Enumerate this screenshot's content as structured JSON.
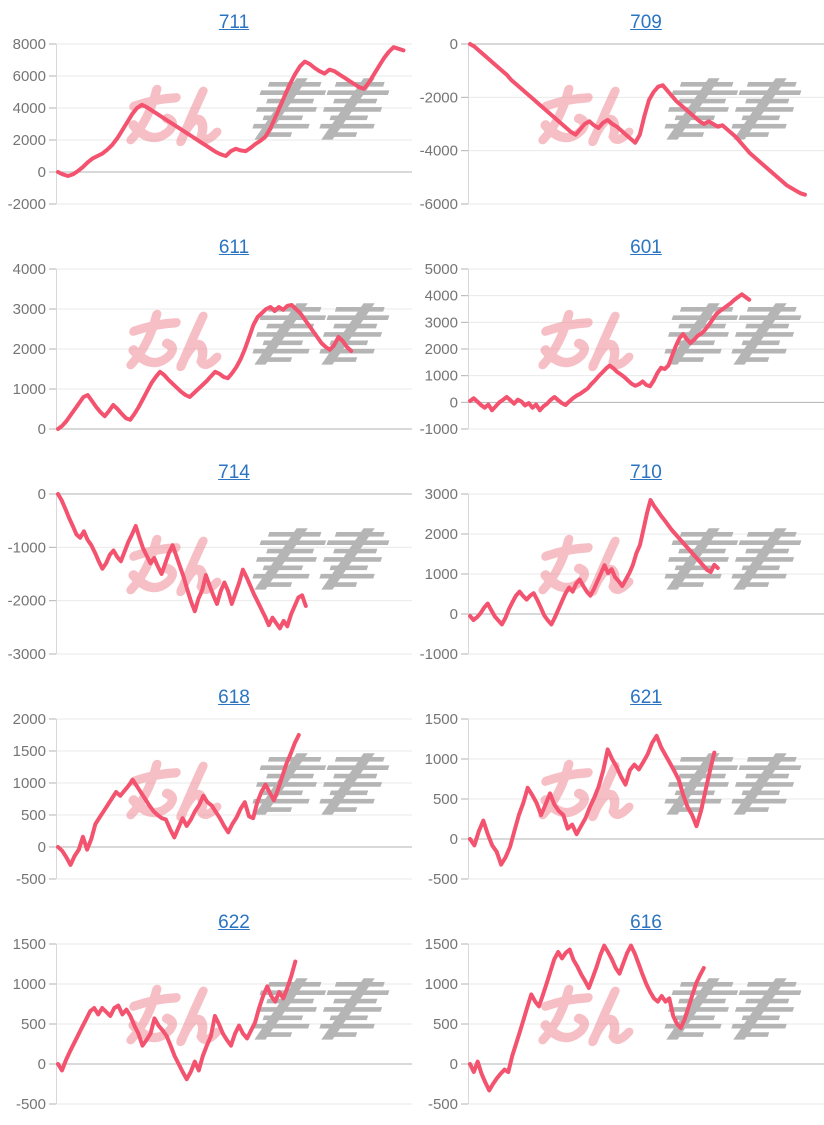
{
  "page": {
    "background": "#ffffff"
  },
  "style": {
    "line_color": "#F3536F",
    "title_color": "#2B74C2",
    "tick_label_color": "#757575",
    "grid_color": "#e9e9e9",
    "zero_line_color": "#b3b3b3",
    "axis_color": "#d8d8d8",
    "tick_dash_color": "#b3b3b3",
    "watermark_pink": "#ef8c96",
    "watermark_gray": "#a9a9a9"
  },
  "watermark": {
    "text": "みんレポ",
    "pink_part": "みん",
    "gray_part": "レポ"
  },
  "chart_data": [
    {
      "type": "line",
      "title": "711",
      "xlabel": "",
      "ylabel": "",
      "ylim": [
        -2000,
        8000
      ],
      "yticks": [
        8000,
        6000,
        4000,
        2000,
        0,
        -2000
      ],
      "x_span": 0.99,
      "values": [
        0,
        -150,
        -250,
        -150,
        50,
        300,
        600,
        850,
        1000,
        1150,
        1400,
        1700,
        2100,
        2600,
        3100,
        3600,
        4000,
        4200,
        4050,
        3850,
        3650,
        3450,
        3250,
        3050,
        2850,
        2650,
        2450,
        2250,
        2050,
        1850,
        1650,
        1450,
        1250,
        1100,
        1000,
        1300,
        1450,
        1350,
        1300,
        1500,
        1750,
        1950,
        2200,
        2700,
        3400,
        4100,
        4800,
        5500,
        6100,
        6600,
        6900,
        6750,
        6500,
        6300,
        6150,
        6400,
        6300,
        6100,
        5900,
        5700,
        5500,
        5300,
        5200,
        5600,
        6100,
        6600,
        7100,
        7500,
        7800,
        7700,
        7600
      ]
    },
    {
      "type": "line",
      "title": "709",
      "xlabel": "",
      "ylabel": "",
      "ylim": [
        -6000,
        0
      ],
      "yticks": [
        0,
        -2000,
        -4000,
        -6000
      ],
      "x_span": 0.96,
      "values": [
        0,
        -100,
        -250,
        -400,
        -550,
        -700,
        -850,
        -1000,
        -1150,
        -1350,
        -1500,
        -1650,
        -1800,
        -1950,
        -2100,
        -2250,
        -2400,
        -2550,
        -2700,
        -2850,
        -3000,
        -3150,
        -3300,
        -3400,
        -3200,
        -3000,
        -2900,
        -3050,
        -3150,
        -2950,
        -2850,
        -3000,
        -3100,
        -3250,
        -3400,
        -3550,
        -3700,
        -3400,
        -2700,
        -2100,
        -1800,
        -1600,
        -1550,
        -1750,
        -1950,
        -2150,
        -2300,
        -2450,
        -2600,
        -2750,
        -2900,
        -3000,
        -2900,
        -3000,
        -3100,
        -3050,
        -3200,
        -3350,
        -3500,
        -3700,
        -3900,
        -4100,
        -4250,
        -4400,
        -4550,
        -4700,
        -4850,
        -5000,
        -5150,
        -5300,
        -5400,
        -5500,
        -5600,
        -5650
      ]
    },
    {
      "type": "line",
      "title": "611",
      "xlabel": "",
      "ylabel": "",
      "ylim": [
        0,
        4000
      ],
      "yticks": [
        4000,
        3000,
        2000,
        1000,
        0
      ],
      "x_span": 0.84,
      "values": [
        0,
        80,
        200,
        350,
        500,
        650,
        800,
        850,
        700,
        550,
        420,
        320,
        450,
        600,
        500,
        380,
        270,
        230,
        380,
        550,
        750,
        950,
        1150,
        1300,
        1430,
        1350,
        1230,
        1130,
        1030,
        930,
        850,
        800,
        900,
        1000,
        1100,
        1200,
        1320,
        1430,
        1380,
        1300,
        1270,
        1400,
        1550,
        1750,
        2000,
        2300,
        2600,
        2800,
        2900,
        3000,
        3050,
        2950,
        3050,
        2980,
        3080,
        3100,
        3000,
        2900,
        2750,
        2600,
        2450,
        2300,
        2150,
        2050,
        1980,
        2100,
        2300,
        2200,
        2050,
        1950
      ]
    },
    {
      "type": "line",
      "title": "601",
      "xlabel": "",
      "ylabel": "",
      "ylim": [
        -1000,
        5000
      ],
      "yticks": [
        5000,
        4000,
        3000,
        2000,
        1000,
        0,
        -1000
      ],
      "x_span": 0.8,
      "values": [
        50,
        150,
        30,
        -100,
        -200,
        -80,
        -300,
        -150,
        0,
        100,
        200,
        80,
        -50,
        100,
        30,
        -120,
        -30,
        -200,
        -80,
        -300,
        -150,
        -50,
        100,
        200,
        80,
        -30,
        -100,
        30,
        150,
        250,
        320,
        420,
        520,
        680,
        820,
        980,
        1120,
        1260,
        1380,
        1280,
        1150,
        1050,
        950,
        820,
        700,
        620,
        680,
        780,
        650,
        600,
        820,
        1100,
        1300,
        1250,
        1380,
        1750,
        2100,
        2400,
        2560,
        2380,
        2220,
        2350,
        2500,
        2580,
        2720,
        2900,
        3100,
        3300,
        3420,
        3520,
        3620,
        3720,
        3850,
        3950,
        4050,
        3950,
        3850
      ]
    },
    {
      "type": "line",
      "title": "714",
      "xlabel": "",
      "ylabel": "",
      "ylim": [
        -3000,
        0
      ],
      "yticks": [
        0,
        -1000,
        -2000,
        -3000
      ],
      "x_span": 0.71,
      "values": [
        0,
        -120,
        -280,
        -450,
        -600,
        -760,
        -820,
        -700,
        -860,
        -960,
        -1100,
        -1260,
        -1400,
        -1300,
        -1140,
        -1060,
        -1180,
        -1260,
        -1080,
        -900,
        -760,
        -600,
        -820,
        -1020,
        -1160,
        -1300,
        -1200,
        -1360,
        -1500,
        -1300,
        -1100,
        -960,
        -1160,
        -1360,
        -1560,
        -1800,
        -2020,
        -2200,
        -1960,
        -1800,
        -1520,
        -1720,
        -1900,
        -2060,
        -1820,
        -1660,
        -1820,
        -2060,
        -1860,
        -1660,
        -1420,
        -1560,
        -1720,
        -1880,
        -2020,
        -2160,
        -2300,
        -2460,
        -2320,
        -2420,
        -2520,
        -2380,
        -2480,
        -2260,
        -2100,
        -1940,
        -1900,
        -2100
      ]
    },
    {
      "type": "line",
      "title": "710",
      "xlabel": "",
      "ylabel": "",
      "ylim": [
        -1000,
        3000
      ],
      "yticks": [
        3000,
        2000,
        1000,
        0,
        -1000
      ],
      "x_span": 0.71,
      "values": [
        -50,
        -150,
        -80,
        20,
        160,
        260,
        100,
        -60,
        -160,
        -260,
        -100,
        120,
        300,
        460,
        560,
        450,
        360,
        460,
        520,
        350,
        160,
        -40,
        -160,
        -260,
        -80,
        120,
        320,
        520,
        660,
        560,
        760,
        860,
        700,
        560,
        460,
        620,
        820,
        1020,
        1220,
        1020,
        1120,
        920,
        820,
        700,
        860,
        1020,
        1220,
        1520,
        1720,
        2120,
        2520,
        2850,
        2700,
        2580,
        2450,
        2340,
        2220,
        2100,
        2000,
        1900,
        1800,
        1700,
        1600,
        1500,
        1400,
        1300,
        1200,
        1100,
        1050,
        1230,
        1150
      ]
    },
    {
      "type": "line",
      "title": "618",
      "xlabel": "",
      "ylabel": "",
      "ylim": [
        -500,
        2000
      ],
      "yticks": [
        2000,
        1500,
        1000,
        500,
        0,
        -500
      ],
      "x_span": 0.69,
      "values": [
        0,
        -60,
        -160,
        -280,
        -140,
        -40,
        160,
        -40,
        120,
        360,
        460,
        560,
        660,
        760,
        860,
        800,
        880,
        960,
        1050,
        950,
        850,
        750,
        650,
        560,
        500,
        450,
        430,
        280,
        150,
        300,
        450,
        330,
        430,
        560,
        660,
        800,
        700,
        650,
        550,
        450,
        330,
        230,
        360,
        460,
        600,
        700,
        480,
        450,
        700,
        860,
        975,
        850,
        730,
        900,
        1100,
        1300,
        1450,
        1620,
        1750
      ]
    },
    {
      "type": "line",
      "title": "621",
      "xlabel": "",
      "ylabel": "",
      "ylim": [
        -500,
        1500
      ],
      "yticks": [
        1500,
        1000,
        500,
        0,
        -500
      ],
      "x_span": 0.7,
      "values": [
        0,
        -80,
        100,
        230,
        60,
        -80,
        -160,
        -320,
        -230,
        -100,
        100,
        300,
        450,
        640,
        550,
        450,
        300,
        430,
        570,
        430,
        350,
        300,
        130,
        180,
        60,
        160,
        260,
        400,
        520,
        660,
        860,
        1120,
        1000,
        900,
        780,
        680,
        860,
        930,
        870,
        960,
        1060,
        1200,
        1290,
        1150,
        1050,
        950,
        850,
        740,
        550,
        400,
        300,
        160,
        350,
        600,
        850,
        1080
      ]
    },
    {
      "type": "line",
      "title": "622",
      "xlabel": "",
      "ylabel": "",
      "ylim": [
        -500,
        1500
      ],
      "yticks": [
        1500,
        1000,
        500,
        0,
        -500
      ],
      "x_span": 0.68,
      "values": [
        0,
        -80,
        50,
        160,
        260,
        360,
        460,
        560,
        660,
        700,
        620,
        700,
        650,
        600,
        700,
        730,
        620,
        680,
        600,
        480,
        380,
        230,
        300,
        380,
        570,
        480,
        420,
        350,
        230,
        100,
        0,
        -100,
        -190,
        -100,
        30,
        -80,
        100,
        230,
        350,
        600,
        500,
        380,
        300,
        230,
        380,
        480,
        380,
        320,
        420,
        520,
        700,
        850,
        970,
        850,
        780,
        900,
        820,
        950,
        1100,
        1280
      ]
    },
    {
      "type": "line",
      "title": "616",
      "xlabel": "",
      "ylabel": "",
      "ylim": [
        -500,
        1500
      ],
      "yticks": [
        1500,
        1000,
        500,
        0,
        -500
      ],
      "x_span": 0.67,
      "values": [
        0,
        -100,
        30,
        -120,
        -230,
        -330,
        -250,
        -180,
        -120,
        -70,
        -100,
        100,
        250,
        400,
        560,
        720,
        870,
        780,
        720,
        860,
        1010,
        1160,
        1310,
        1400,
        1320,
        1390,
        1430,
        1300,
        1220,
        1120,
        1040,
        950,
        1080,
        1210,
        1360,
        1480,
        1400,
        1310,
        1200,
        1130,
        1260,
        1390,
        1480,
        1380,
        1250,
        1120,
        1000,
        900,
        820,
        780,
        850,
        780,
        820,
        600,
        500,
        450,
        560,
        710,
        860,
        1010,
        1110,
        1200
      ]
    }
  ]
}
